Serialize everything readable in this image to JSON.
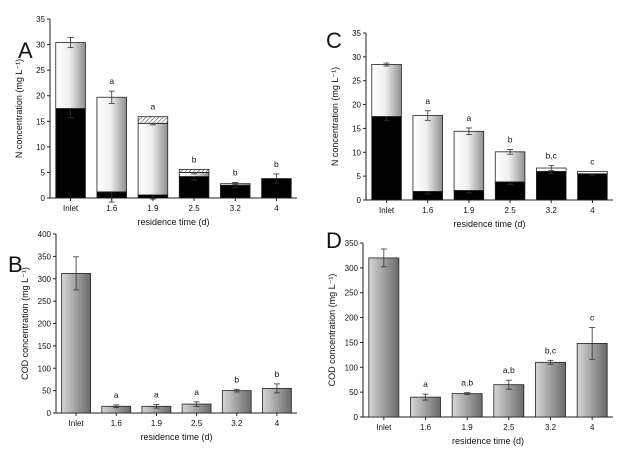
{
  "chart_data": [
    {
      "panel": "A",
      "type": "bar",
      "stacked": true,
      "categories": [
        "Inlet",
        "1.6",
        "1.9",
        "2.5",
        "3.2",
        "4"
      ],
      "xlabel": "residence time (d)",
      "ylabel": "N concentration (mg L⁻¹)",
      "ylim": [
        0,
        35
      ],
      "yticks": [
        0,
        5,
        10,
        15,
        20,
        25,
        30,
        35
      ],
      "series": [
        {
          "style": "black",
          "values": [
            17.5,
            1.2,
            0.6,
            4.2,
            2.5,
            3.8
          ],
          "errors": [
            1.8,
            2.0,
            0.8,
            0.7,
            0.5,
            0.9
          ]
        },
        {
          "style": "gradient",
          "values": [
            12.9,
            18.5,
            14.0,
            0.8,
            0.3,
            0.0
          ],
          "errors": [
            1.0,
            1.2,
            0.3,
            0.3,
            0.2,
            0
          ]
        },
        {
          "style": "hatched",
          "values": [
            0,
            0,
            1.3,
            0.6,
            0,
            0
          ],
          "errors": [
            0,
            0,
            0,
            0,
            0,
            0
          ]
        }
      ],
      "annotations": [
        "",
        "a",
        "a",
        "b",
        "b",
        "b"
      ]
    },
    {
      "panel": "B",
      "type": "bar",
      "categories": [
        "Inlet",
        "1.6",
        "1.9",
        "2.5",
        "3.2",
        "4"
      ],
      "xlabel": "residence time (d)",
      "ylabel": "COD concentration (mg L⁻¹)",
      "ylim": [
        0,
        400
      ],
      "yticks": [
        0,
        50,
        100,
        150,
        200,
        250,
        300,
        350,
        400
      ],
      "values": [
        312,
        15,
        15,
        20,
        50,
        55
      ],
      "errors": [
        37,
        3,
        4,
        5,
        3,
        10
      ],
      "annotations": [
        "",
        "a",
        "a",
        "a",
        "b",
        "b"
      ]
    },
    {
      "panel": "C",
      "type": "bar",
      "stacked": true,
      "categories": [
        "Inlet",
        "1.6",
        "1.9",
        "2.5",
        "3.2",
        "4"
      ],
      "xlabel": "residence time (d)",
      "ylabel": "N concentration (mg L⁻¹)",
      "ylim": [
        0,
        35
      ],
      "yticks": [
        0,
        5,
        10,
        15,
        20,
        25,
        30,
        35
      ],
      "series": [
        {
          "style": "black",
          "values": [
            17.5,
            1.8,
            2.0,
            3.8,
            6.0,
            5.5
          ],
          "errors": [
            0.8,
            0.5,
            0.5,
            0.5,
            0.5,
            0.3
          ]
        },
        {
          "style": "gradient",
          "values": [
            10.9,
            15.9,
            12.4,
            6.3,
            0.0,
            0.0
          ],
          "errors": [
            0.3,
            1.0,
            0.7,
            0.5,
            0,
            0
          ]
        },
        {
          "style": "white",
          "values": [
            0,
            0,
            0,
            0,
            0.7,
            0.5
          ],
          "errors": [
            0,
            0,
            0,
            0,
            0.5,
            0
          ]
        }
      ],
      "annotations": [
        "",
        "a",
        "a",
        "b",
        "b,c",
        "c"
      ]
    },
    {
      "panel": "D",
      "type": "bar",
      "categories": [
        "Inlet",
        "1.6",
        "1.9",
        "2.5",
        "3.2",
        "4"
      ],
      "xlabel": "residence time (d)",
      "ylabel": "COD concentration (mg L⁻¹)",
      "ylim": [
        0,
        350
      ],
      "yticks": [
        0,
        50,
        100,
        150,
        200,
        250,
        300,
        350
      ],
      "values": [
        320,
        40,
        47,
        65,
        110,
        148
      ],
      "errors": [
        18,
        6,
        2,
        9,
        4,
        32
      ],
      "annotations": [
        "",
        "a",
        "a,b",
        "a,b",
        "b,c",
        "c"
      ]
    }
  ]
}
